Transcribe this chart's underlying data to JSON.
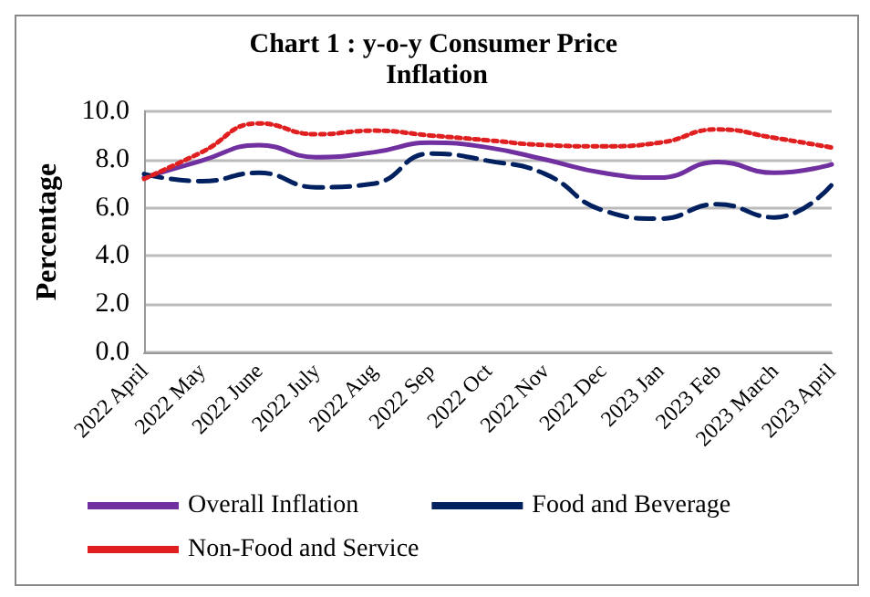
{
  "chart_data": {
    "type": "line",
    "title": "Chart 1 : y-o-y Consumer Price Inflation",
    "ylabel": "Percentage",
    "categories": [
      "2022 April",
      "2022 May",
      "2022 June",
      "2022 July",
      "2022 Aug",
      "2022 Sep",
      "2022 Oct",
      "2022 Nov",
      "2022 Dec",
      "2023 Jan",
      "2023 Feb",
      "2023 March",
      "2023 April"
    ],
    "series": [
      {
        "name": "Overall Inflation",
        "color": "#7030a0",
        "line_style": "solid",
        "values": [
          7.25,
          7.95,
          8.6,
          8.1,
          8.3,
          8.7,
          8.5,
          8.0,
          7.45,
          7.25,
          7.9,
          7.45,
          7.8
        ]
      },
      {
        "name": "Food and Beverage",
        "color": "#002060",
        "line_style": "dashed",
        "values": [
          7.4,
          7.1,
          7.45,
          6.85,
          7.0,
          8.25,
          7.95,
          7.4,
          5.9,
          5.55,
          6.15,
          5.6,
          6.95
        ]
      },
      {
        "name": "Non-Food and Service",
        "color": "#e02020",
        "line_style": "dotted",
        "values": [
          7.2,
          8.3,
          9.5,
          9.05,
          9.2,
          9.0,
          8.8,
          8.6,
          8.55,
          8.7,
          9.25,
          8.9,
          8.5
        ]
      }
    ],
    "ylim": [
      0,
      10
    ],
    "yticks": [
      {
        "value": 0,
        "label": "0.0"
      },
      {
        "value": 2,
        "label": "2.0"
      },
      {
        "value": 4,
        "label": "4.0"
      },
      {
        "value": 6,
        "label": "6.0"
      },
      {
        "value": 8,
        "label": "8.0"
      },
      {
        "value": 10,
        "label": "10.0"
      }
    ],
    "grid": "y",
    "legend": "bottom",
    "marker": "none"
  }
}
